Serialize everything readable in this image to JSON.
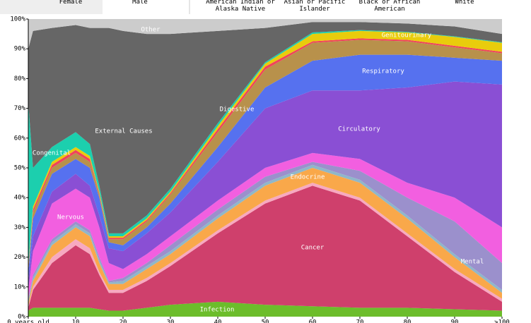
{
  "filters": {
    "sex": [
      "Female",
      "Male"
    ],
    "race": [
      [
        "American Indian or",
        "Alaska Native"
      ],
      [
        "Asian or Pacific",
        "Islander"
      ],
      [
        "Black or African",
        "American"
      ],
      [
        "White"
      ]
    ]
  },
  "chart_data": {
    "type": "stacked_area",
    "x": [
      0,
      1,
      5,
      10,
      13,
      15,
      17,
      20,
      25,
      30,
      40,
      50,
      60,
      70,
      80,
      90,
      100
    ],
    "xlim": [
      0,
      100
    ],
    "xticks": [
      {
        "value": 0,
        "label": "0 years old"
      },
      10,
      20,
      30,
      40,
      50,
      60,
      70,
      80,
      90,
      {
        "value": 100,
        "label": ">100"
      }
    ],
    "ylim": [
      0,
      100
    ],
    "yticks": [
      {
        "value": 0,
        "label": "0%"
      },
      {
        "value": 10,
        "label": "10%"
      },
      {
        "value": 20,
        "label": "20%"
      },
      {
        "value": 30,
        "label": "30%"
      },
      {
        "value": 40,
        "label": "40%"
      },
      {
        "value": 50,
        "label": "50%"
      },
      {
        "value": 60,
        "label": "60%"
      },
      {
        "value": 70,
        "label": "70%"
      },
      {
        "value": 80,
        "label": "80%"
      },
      {
        "value": 90,
        "label": "90%"
      },
      {
        "value": 100,
        "label": "100%"
      }
    ],
    "series": [
      {
        "name": "Infection",
        "color": "#6cbd2b",
        "values": [
          2,
          3,
          3,
          3,
          3,
          2.5,
          2,
          2,
          3,
          4,
          5,
          4,
          3.5,
          3,
          3,
          2.5,
          2
        ]
      },
      {
        "name": "Cancer",
        "color": "#cf406c",
        "values": [
          1,
          6,
          15,
          21,
          18,
          11.5,
          6,
          6,
          9,
          13,
          23,
          34,
          40.5,
          36,
          24,
          12.5,
          3
        ]
      },
      {
        "color": "#f7a9c0",
        "values": [
          0.5,
          1,
          2,
          2,
          2,
          1,
          1,
          1,
          1,
          1,
          1,
          1,
          1,
          1,
          1,
          1,
          1
        ]
      },
      {
        "name": "Endocrine",
        "color": "#f9a84a",
        "values": [
          1,
          2,
          4,
          4,
          4,
          3,
          2,
          2,
          3,
          3,
          4,
          5,
          5,
          5,
          5,
          4,
          2
        ]
      },
      {
        "color": "#8fb7c9",
        "values": [
          1,
          1,
          1,
          1,
          1,
          1,
          0.5,
          1,
          1,
          1,
          1,
          1,
          1,
          1,
          1,
          1,
          1
        ]
      },
      {
        "name": "Mental",
        "color": "#9b90cc",
        "values": [
          0.5,
          1,
          1,
          1,
          1,
          1,
          0.5,
          1,
          1,
          2,
          2,
          2,
          1,
          3,
          6,
          11,
          9
        ]
      },
      {
        "name": "Nervous",
        "color": "#f25fe0",
        "values": [
          3,
          8,
          12,
          11,
          11,
          10,
          6,
          3,
          3,
          3,
          3,
          3,
          3,
          4,
          5,
          8,
          12
        ]
      },
      {
        "name": "Circulatory",
        "color": "#8a4fd4",
        "values": [
          3,
          5,
          4,
          5,
          4,
          4,
          5,
          6,
          7,
          8,
          13,
          20,
          21,
          23,
          32,
          39,
          48
        ]
      },
      {
        "name": "Respiratory",
        "color": "#5671ef",
        "values": [
          3,
          6,
          6,
          5,
          6,
          6,
          2,
          2,
          2,
          3,
          5,
          7,
          10,
          12,
          11,
          8,
          8
        ]
      },
      {
        "name": "Digestive",
        "color": "#b8914b",
        "values": [
          1,
          2,
          2,
          2,
          2,
          1,
          1,
          2,
          2,
          3,
          5,
          6,
          6,
          5,
          4.5,
          3.5,
          2.5
        ]
      },
      {
        "color": "#f0445a",
        "values": [
          0.5,
          1,
          1,
          1,
          1,
          0.5,
          0.5,
          0.5,
          0.5,
          0.5,
          1,
          1,
          0.5,
          0.5,
          0.5,
          0.5,
          0.5
        ]
      },
      {
        "name": "Genitourinary",
        "color": "#e9cc0c",
        "values": [
          0.5,
          1,
          1,
          1,
          1,
          0.5,
          0.5,
          0.5,
          0.5,
          0.5,
          1,
          1,
          2.5,
          2.5,
          2.5,
          3,
          3
        ]
      },
      {
        "name": "Congenital",
        "color": "#1ccfae",
        "values": [
          55,
          13,
          5,
          5,
          4,
          2,
          1,
          1,
          1,
          1,
          1,
          0.5,
          0.5,
          0.3,
          0.2,
          0.2,
          0.2
        ]
      },
      {
        "name": "External Causes",
        "color": "#666666",
        "values": [
          18,
          46,
          40,
          36,
          39,
          53,
          69,
          68,
          61,
          52,
          31,
          11.5,
          3.5,
          2.7,
          2.8,
          3.3,
          2.8
        ]
      },
      {
        "name": "Other",
        "color": "#cccccc",
        "values": [
          10,
          4,
          3,
          2,
          3,
          3,
          3,
          4,
          5,
          5,
          4,
          3,
          1,
          1,
          1.5,
          2.5,
          5
        ]
      }
    ]
  }
}
